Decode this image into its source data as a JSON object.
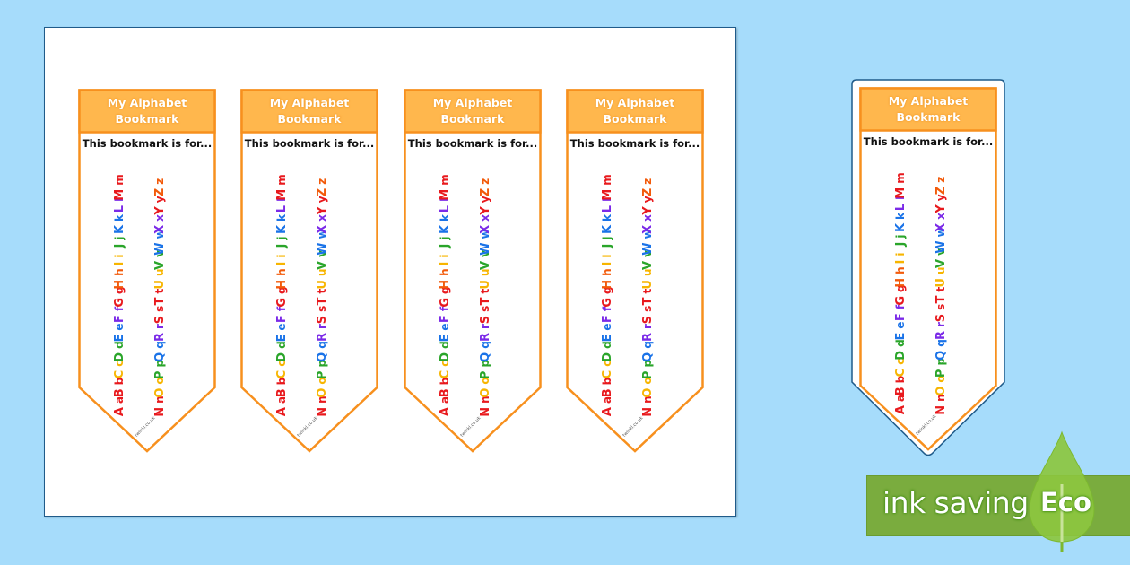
{
  "colors": {
    "background": "#a6dcfb",
    "page": "#ffffff",
    "bookmark_header": "#ffb74d",
    "bookmark_border": "#f7901e",
    "eco_bar": "#7aac3e",
    "eco_leaf": "#8cc63f"
  },
  "bookmark": {
    "title_line1": "My Alphabet",
    "title_line2": "Bookmark",
    "for_label": "This bookmark is for...",
    "footer": "twinkl.co.uk",
    "left_column": [
      {
        "upper": "A",
        "lower": "a",
        "color": "#e8191d"
      },
      {
        "upper": "B",
        "lower": "b",
        "color": "#e8191d"
      },
      {
        "upper": "C",
        "lower": "c",
        "color": "#f7b500"
      },
      {
        "upper": "D",
        "lower": "d",
        "color": "#2aa52a"
      },
      {
        "upper": "E",
        "lower": "e",
        "color": "#1a73e8"
      },
      {
        "upper": "F",
        "lower": "f",
        "color": "#7b2ae8"
      },
      {
        "upper": "G",
        "lower": "g",
        "color": "#e8191d"
      },
      {
        "upper": "H",
        "lower": "h",
        "color": "#f25a0a"
      },
      {
        "upper": "I",
        "lower": "i",
        "color": "#f7b500"
      },
      {
        "upper": "J",
        "lower": "j",
        "color": "#2aa52a"
      },
      {
        "upper": "K",
        "lower": "k",
        "color": "#1a73e8"
      },
      {
        "upper": "L",
        "lower": "l",
        "color": "#7b2ae8"
      },
      {
        "upper": "M",
        "lower": "m",
        "color": "#e8191d"
      }
    ],
    "right_column": [
      {
        "upper": "N",
        "lower": "n",
        "color": "#e8191d"
      },
      {
        "upper": "O",
        "lower": "o",
        "color": "#f7b500"
      },
      {
        "upper": "P",
        "lower": "p",
        "color": "#2aa52a"
      },
      {
        "upper": "Q",
        "lower": "q",
        "color": "#1a73e8"
      },
      {
        "upper": "R",
        "lower": "r",
        "color": "#7b2ae8"
      },
      {
        "upper": "S",
        "lower": "s",
        "color": "#e8191d"
      },
      {
        "upper": "T",
        "lower": "t",
        "color": "#e8191d"
      },
      {
        "upper": "U",
        "lower": "u",
        "color": "#f7b500"
      },
      {
        "upper": "V",
        "lower": "v",
        "color": "#2aa52a"
      },
      {
        "upper": "W",
        "lower": "w",
        "color": "#1a73e8"
      },
      {
        "upper": "X",
        "lower": "x",
        "color": "#7b2ae8"
      },
      {
        "upper": "Y",
        "lower": "y",
        "color": "#e8191d"
      },
      {
        "upper": "Z",
        "lower": "z",
        "color": "#f25a0a"
      }
    ]
  },
  "sheet": {
    "bookmark_count": 4
  },
  "eco_badge": {
    "text": "ink saving",
    "label": "Eco"
  }
}
